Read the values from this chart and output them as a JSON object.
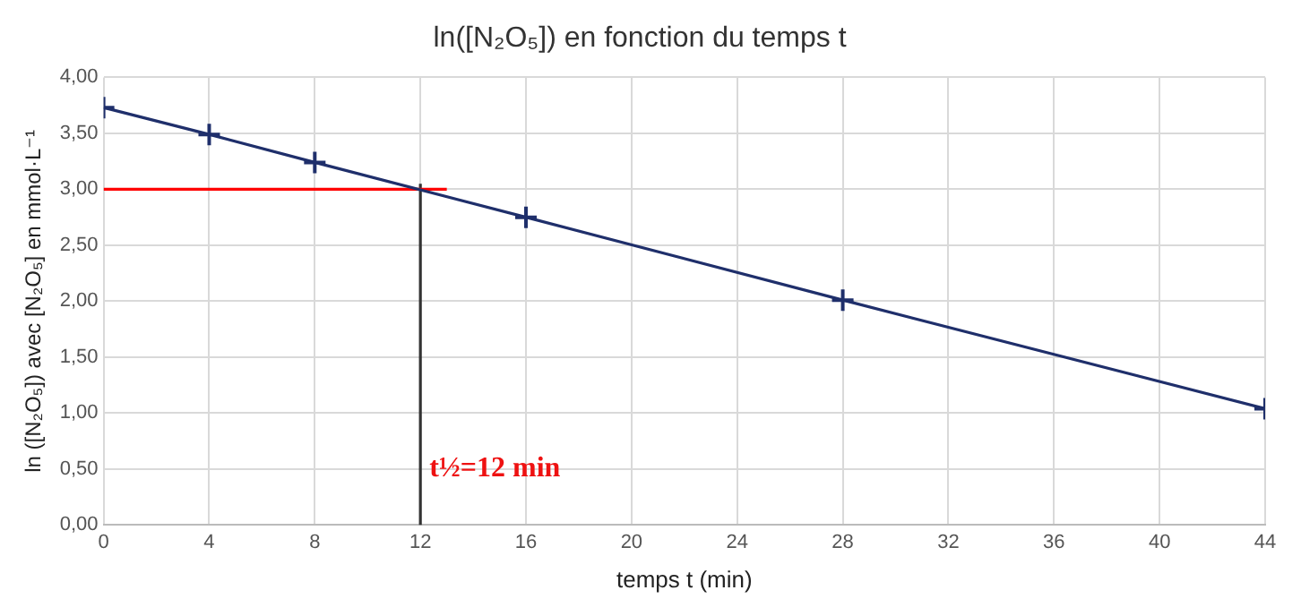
{
  "chart_data": {
    "type": "line",
    "title": "ln([N₂O₅]) en fonction du temps t",
    "xlabel": "temps t (min)",
    "ylabel": "ln ([N₂O₅]) avec [N₂O₅] en mmol·L⁻¹",
    "series": [
      {
        "x": [
          0,
          4,
          8,
          16,
          28,
          44
        ],
        "values": [
          3.73,
          3.49,
          3.24,
          2.75,
          2.01,
          1.04
        ],
        "color": "#1f2f6b",
        "marker": "cross"
      },
      {
        "x": [
          0,
          13
        ],
        "values": [
          3.0,
          3.0
        ],
        "color": "#ff0000",
        "marker": "none"
      },
      {
        "x": [
          12,
          12
        ],
        "values": [
          0,
          3.05
        ],
        "color": "#333333",
        "marker": "none"
      }
    ],
    "annotations": [
      {
        "text": "t½=12 min",
        "x": 12,
        "y": 0.5
      }
    ],
    "xlim": [
      0,
      44
    ],
    "xticks": [
      0,
      4,
      8,
      12,
      16,
      20,
      24,
      28,
      32,
      36,
      40,
      44
    ],
    "ylim": [
      0,
      4
    ],
    "yticks": [
      {
        "value": 0,
        "label": "0,00"
      },
      {
        "value": 0.5,
        "label": "0,50"
      },
      {
        "value": 1,
        "label": "1,00"
      },
      {
        "value": 1.5,
        "label": "1,50"
      },
      {
        "value": 2,
        "label": "2,00"
      },
      {
        "value": 2.5,
        "label": "2,50"
      },
      {
        "value": 3,
        "label": "3,00"
      },
      {
        "value": 3.5,
        "label": "3,50"
      },
      {
        "value": 4,
        "label": "4,00"
      }
    ],
    "grid": true,
    "legend": false,
    "line_style": "solid"
  }
}
